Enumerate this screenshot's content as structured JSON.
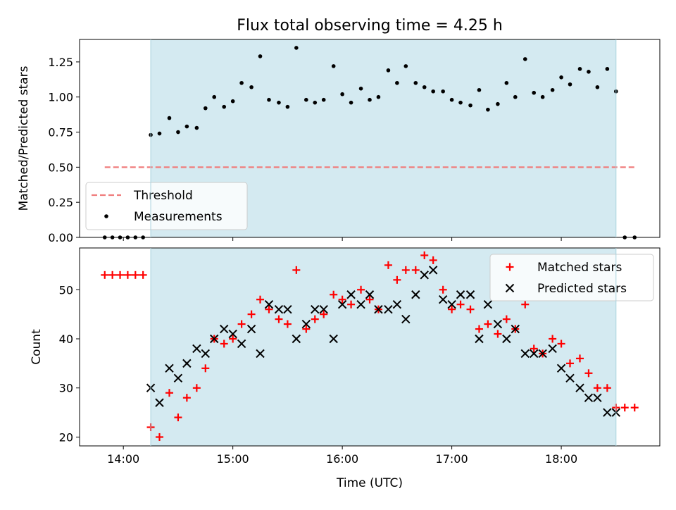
{
  "chart_data": [
    {
      "type": "scatter",
      "title": "Flux total observing time = 4.25 h",
      "xlabel": "",
      "ylabel": "Matched/Predicted stars",
      "x_unit": "hours (UTC)",
      "xlim": [
        13.6,
        18.9
      ],
      "ylim": [
        0,
        1.41
      ],
      "yticks": [
        0.0,
        0.25,
        0.5,
        0.75,
        1.0,
        1.25
      ],
      "ytick_labels": [
        "0.00",
        "0.25",
        "0.50",
        "0.75",
        "1.00",
        "1.25"
      ],
      "shaded_span": [
        14.25,
        18.5
      ],
      "shade_color": "#d4eaf1",
      "threshold": {
        "name": "Threshold",
        "value": 0.5,
        "x_range": [
          13.83,
          18.67
        ],
        "color": "#f07c7c"
      },
      "legend_position": "lower-left",
      "series": [
        {
          "name": "Measurements",
          "marker": "dot",
          "color": "#000000",
          "x": [
            13.83,
            13.9,
            13.97,
            14.04,
            14.11,
            14.18,
            14.25,
            14.33,
            14.42,
            14.5,
            14.58,
            14.67,
            14.75,
            14.83,
            14.92,
            15.0,
            15.08,
            15.17,
            15.25,
            15.33,
            15.42,
            15.5,
            15.58,
            15.67,
            15.75,
            15.83,
            15.92,
            16.0,
            16.08,
            16.17,
            16.25,
            16.33,
            16.42,
            16.5,
            16.58,
            16.67,
            16.75,
            16.83,
            16.92,
            17.0,
            17.08,
            17.17,
            17.25,
            17.33,
            17.42,
            17.5,
            17.58,
            17.67,
            17.75,
            17.83,
            17.92,
            18.0,
            18.08,
            18.17,
            18.25,
            18.33,
            18.42,
            18.5,
            18.58,
            18.67
          ],
          "y": [
            0,
            0,
            0,
            0,
            0,
            0,
            0.73,
            0.74,
            0.85,
            0.75,
            0.79,
            0.78,
            0.92,
            1.0,
            0.93,
            0.97,
            1.1,
            1.07,
            1.29,
            0.98,
            0.96,
            0.93,
            1.35,
            0.98,
            0.96,
            0.98,
            1.22,
            1.02,
            0.96,
            1.06,
            0.98,
            1.0,
            1.19,
            1.1,
            1.22,
            1.1,
            1.07,
            1.04,
            1.04,
            0.98,
            0.96,
            0.94,
            1.05,
            0.91,
            0.95,
            1.1,
            1.0,
            1.27,
            1.03,
            1.0,
            1.05,
            1.14,
            1.09,
            1.2,
            1.18,
            1.07,
            1.2,
            1.04,
            0,
            0
          ]
        }
      ]
    },
    {
      "type": "scatter",
      "title": "",
      "xlabel": "Time (UTC)",
      "ylabel": "Count",
      "x_unit": "hours (UTC)",
      "xlim": [
        13.6,
        18.9
      ],
      "ylim": [
        18.2,
        58.5
      ],
      "xticks": [
        14,
        15,
        16,
        17,
        18
      ],
      "xtick_labels": [
        "14:00",
        "15:00",
        "16:00",
        "17:00",
        "18:00"
      ],
      "yticks": [
        20,
        30,
        40,
        50
      ],
      "ytick_labels": [
        "20",
        "30",
        "40",
        "50"
      ],
      "shaded_span": [
        14.25,
        18.5
      ],
      "legend_position": "upper-right",
      "series": [
        {
          "name": "Matched stars",
          "marker": "plus",
          "color": "#ff0000",
          "x": [
            13.83,
            13.9,
            13.97,
            14.04,
            14.11,
            14.18,
            14.25,
            14.33,
            14.42,
            14.5,
            14.58,
            14.67,
            14.75,
            14.83,
            14.92,
            15.0,
            15.08,
            15.17,
            15.25,
            15.33,
            15.42,
            15.5,
            15.58,
            15.67,
            15.75,
            15.83,
            15.92,
            16.0,
            16.08,
            16.17,
            16.25,
            16.33,
            16.42,
            16.5,
            16.58,
            16.67,
            16.75,
            16.83,
            16.92,
            17.0,
            17.08,
            17.17,
            17.25,
            17.33,
            17.42,
            17.5,
            17.58,
            17.67,
            17.75,
            17.83,
            17.92,
            18.0,
            18.08,
            18.17,
            18.25,
            18.33,
            18.42,
            18.5,
            18.58,
            18.67
          ],
          "y": [
            53,
            53,
            53,
            53,
            53,
            53,
            22,
            20,
            29,
            24,
            28,
            30,
            34,
            40,
            39,
            40,
            43,
            45,
            48,
            46,
            44,
            43,
            54,
            42,
            44,
            45,
            49,
            48,
            47,
            50,
            48,
            46,
            55,
            52,
            54,
            54,
            57,
            56,
            50,
            46,
            47,
            46,
            42,
            43,
            41,
            44,
            42,
            47,
            38,
            37,
            40,
            39,
            35,
            36,
            33,
            30,
            30,
            26,
            26,
            26
          ]
        },
        {
          "name": "Predicted stars",
          "marker": "x",
          "color": "#000000",
          "x": [
            14.25,
            14.33,
            14.42,
            14.5,
            14.58,
            14.67,
            14.75,
            14.83,
            14.92,
            15.0,
            15.08,
            15.17,
            15.25,
            15.33,
            15.42,
            15.5,
            15.58,
            15.67,
            15.75,
            15.83,
            15.92,
            16.0,
            16.08,
            16.17,
            16.25,
            16.33,
            16.42,
            16.5,
            16.58,
            16.67,
            16.75,
            16.83,
            16.92,
            17.0,
            17.08,
            17.17,
            17.25,
            17.33,
            17.42,
            17.5,
            17.58,
            17.67,
            17.75,
            17.83,
            17.92,
            18.0,
            18.08,
            18.17,
            18.25,
            18.33,
            18.42,
            18.5
          ],
          "y": [
            30,
            27,
            34,
            32,
            35,
            38,
            37,
            40,
            42,
            41,
            39,
            42,
            37,
            47,
            46,
            46,
            40,
            43,
            46,
            46,
            40,
            47,
            49,
            47,
            49,
            46,
            46,
            47,
            44,
            49,
            53,
            54,
            48,
            47,
            49,
            49,
            40,
            47,
            43,
            40,
            42,
            37,
            37,
            37,
            38,
            34,
            32,
            30,
            28,
            28,
            25,
            25
          ]
        }
      ]
    }
  ]
}
